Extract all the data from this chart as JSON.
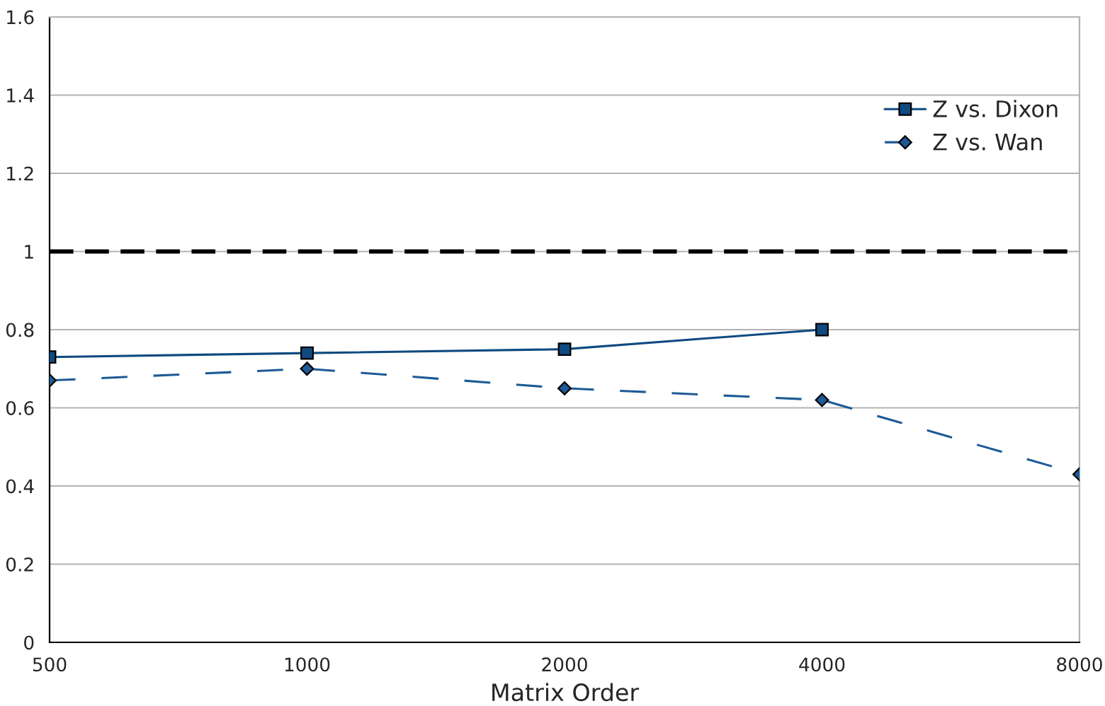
{
  "chart_data": {
    "type": "line",
    "xlabel": "Matrix Order",
    "categories": [
      "500",
      "1000",
      "2000",
      "4000",
      "8000"
    ],
    "series": [
      {
        "name": "Z vs. Dixon",
        "color": "#0f4a80",
        "values": [
          0.73,
          0.74,
          0.75,
          0.8,
          null
        ],
        "marker": "square",
        "line_style": "solid"
      },
      {
        "name": "Z vs. Wan",
        "color": "#1d5a96",
        "values": [
          0.67,
          0.7,
          0.65,
          0.62,
          0.43
        ],
        "marker": "diamond",
        "line_style": "dashed"
      }
    ],
    "ylim": [
      0,
      1.6
    ],
    "yticks": [
      0,
      0.2,
      0.4,
      0.6,
      0.8,
      1,
      1.2,
      1.4,
      1.6
    ],
    "ref_lines": [
      {
        "axis": "y",
        "value": 1,
        "color": "#000000",
        "line_style": "dashed"
      }
    ],
    "grid": "y",
    "legend": "top right"
  }
}
